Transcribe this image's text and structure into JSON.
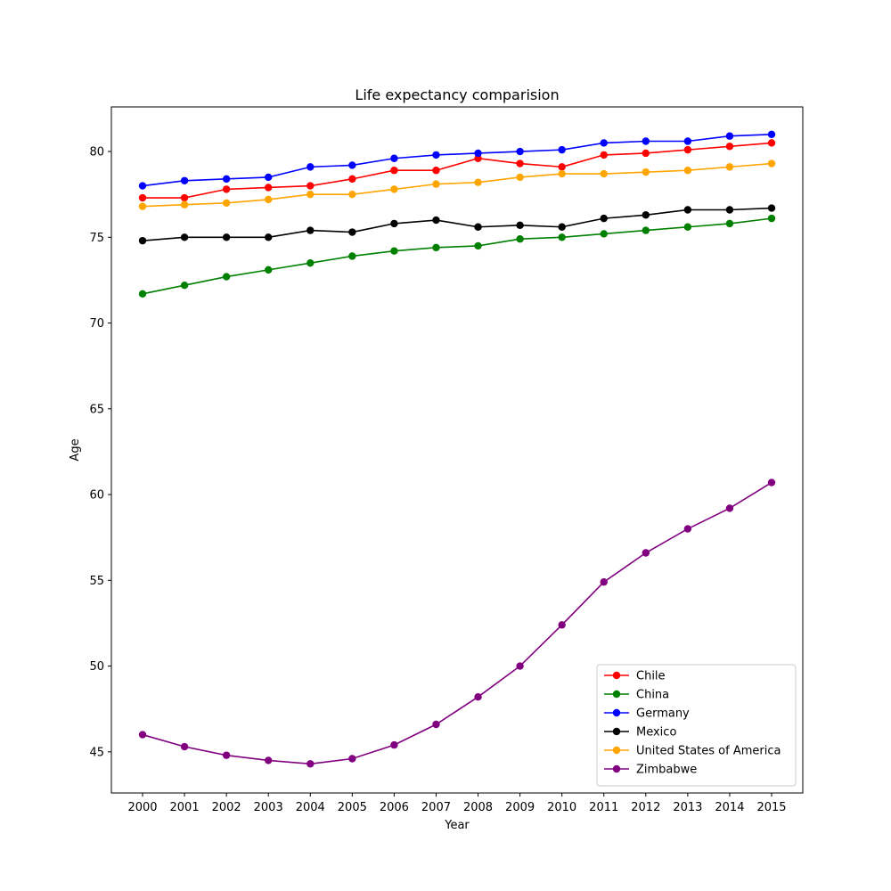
{
  "chart_data": {
    "type": "line",
    "title": "Life expectancy comparision",
    "xlabel": "Year",
    "ylabel": "Age",
    "x": [
      2000,
      2001,
      2002,
      2003,
      2004,
      2005,
      2006,
      2007,
      2008,
      2009,
      2010,
      2011,
      2012,
      2013,
      2014,
      2015
    ],
    "x_tick_labels": [
      "2000",
      "2001",
      "2002",
      "2003",
      "2004",
      "2005",
      "2006",
      "2007",
      "2008",
      "2009",
      "2010",
      "2011",
      "2012",
      "2013",
      "2014",
      "2015"
    ],
    "ylim": [
      42.6,
      82.6
    ],
    "y_ticks": [
      45,
      50,
      55,
      60,
      65,
      70,
      75,
      80
    ],
    "y_tick_labels": [
      "45",
      "50",
      "55",
      "60",
      "65",
      "70",
      "75",
      "80"
    ],
    "grid": false,
    "legend_position": "lower-right",
    "marker": "circle",
    "series": [
      {
        "name": "Chile",
        "color": "#ff0000",
        "values": [
          77.3,
          77.3,
          77.8,
          77.9,
          78.0,
          78.4,
          78.9,
          78.9,
          79.6,
          79.3,
          79.1,
          79.8,
          79.9,
          80.1,
          80.3,
          80.5
        ]
      },
      {
        "name": "China",
        "color": "#008000",
        "values": [
          71.7,
          72.2,
          72.7,
          73.1,
          73.5,
          73.9,
          74.2,
          74.4,
          74.5,
          74.9,
          75.0,
          75.2,
          75.4,
          75.6,
          75.8,
          76.1
        ]
      },
      {
        "name": "Germany",
        "color": "#0000ff",
        "values": [
          78.0,
          78.3,
          78.4,
          78.5,
          79.1,
          79.2,
          79.6,
          79.8,
          79.9,
          80.0,
          80.1,
          80.5,
          80.6,
          80.6,
          80.9,
          81.0
        ]
      },
      {
        "name": "Mexico",
        "color": "#000000",
        "values": [
          74.8,
          75.0,
          75.0,
          75.0,
          75.4,
          75.3,
          75.8,
          76.0,
          75.6,
          75.7,
          75.6,
          76.1,
          76.3,
          76.6,
          76.6,
          76.7
        ]
      },
      {
        "name": "United States of America",
        "color": "#ffa500",
        "values": [
          76.8,
          76.9,
          77.0,
          77.2,
          77.5,
          77.5,
          77.8,
          78.1,
          78.2,
          78.5,
          78.7,
          78.7,
          78.8,
          78.9,
          79.1,
          79.3
        ]
      },
      {
        "name": "Zimbabwe",
        "color": "#800080",
        "values": [
          46.0,
          45.3,
          44.8,
          44.5,
          44.3,
          44.6,
          45.4,
          46.6,
          48.2,
          50.0,
          52.4,
          54.9,
          56.6,
          58.0,
          59.2,
          60.7
        ]
      }
    ]
  }
}
